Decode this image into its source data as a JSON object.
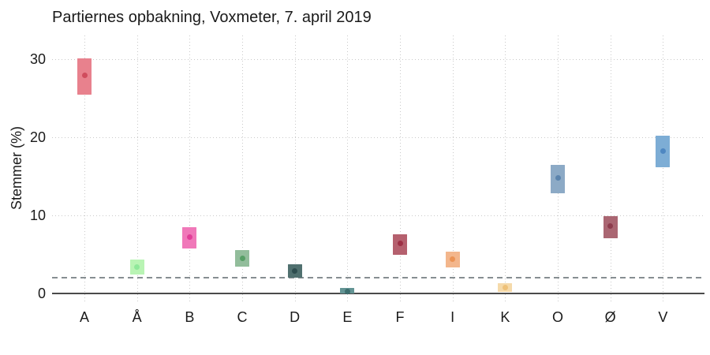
{
  "title": "Partiernes opbakning, Voxmeter, 7. april 2019",
  "chart_data": {
    "type": "scatter",
    "subtype": "point-estimate-with-confidence-interval-bars",
    "title": "Partiernes opbakning, Voxmeter, 7. april 2019",
    "xlabel": "",
    "ylabel": "Stemmer (%)",
    "ylim": [
      -1.3,
      33
    ],
    "yticks": [
      0,
      10,
      20,
      30
    ],
    "grid": "dotted",
    "legend": "none",
    "threshold_line": {
      "y": 2,
      "style": "dashed",
      "color": "#868e92"
    },
    "categories": [
      "A",
      "Å",
      "B",
      "C",
      "D",
      "E",
      "F",
      "I",
      "K",
      "O",
      "Ø",
      "V"
    ],
    "series": [
      {
        "party": "A",
        "estimate": 27.9,
        "low": 25.4,
        "high": 30.1,
        "bar_color": "#e8818d",
        "dot_color": "#d04c5d"
      },
      {
        "party": "Å",
        "estimate": 3.4,
        "low": 2.4,
        "high": 4.3,
        "bar_color": "#b9f4b4",
        "dot_color": "#8fe89a"
      },
      {
        "party": "B",
        "estimate": 7.2,
        "low": 5.8,
        "high": 8.5,
        "bar_color": "#f078b9",
        "dot_color": "#e13d98"
      },
      {
        "party": "C",
        "estimate": 4.5,
        "low": 3.4,
        "high": 5.6,
        "bar_color": "#92bd9b",
        "dot_color": "#579f66"
      },
      {
        "party": "D",
        "estimate": 2.9,
        "low": 2.0,
        "high": 3.7,
        "bar_color": "#50706f",
        "dot_color": "#2e4d4f"
      },
      {
        "party": "E",
        "estimate": 0.3,
        "low": 0.0,
        "high": 0.7,
        "bar_color": "#639494",
        "dot_color": "#3c6e6e"
      },
      {
        "party": "F",
        "estimate": 6.4,
        "low": 5.0,
        "high": 7.6,
        "bar_color": "#b5606e",
        "dot_color": "#9d3045"
      },
      {
        "party": "I",
        "estimate": 4.4,
        "low": 3.3,
        "high": 5.4,
        "bar_color": "#f3b68c",
        "dot_color": "#eb9355"
      },
      {
        "party": "K",
        "estimate": 0.8,
        "low": 0.2,
        "high": 1.3,
        "bar_color": "#f5daaa",
        "dot_color": "#eec179"
      },
      {
        "party": "O",
        "estimate": 14.8,
        "low": 12.8,
        "high": 16.5,
        "bar_color": "#8caac6",
        "dot_color": "#5b84ad"
      },
      {
        "party": "Ø",
        "estimate": 8.6,
        "low": 7.1,
        "high": 9.9,
        "bar_color": "#aa6672",
        "dot_color": "#8d3c4d"
      },
      {
        "party": "V",
        "estimate": 18.2,
        "low": 16.2,
        "high": 20.2,
        "bar_color": "#7dadd5",
        "dot_color": "#4e87c1"
      }
    ]
  }
}
